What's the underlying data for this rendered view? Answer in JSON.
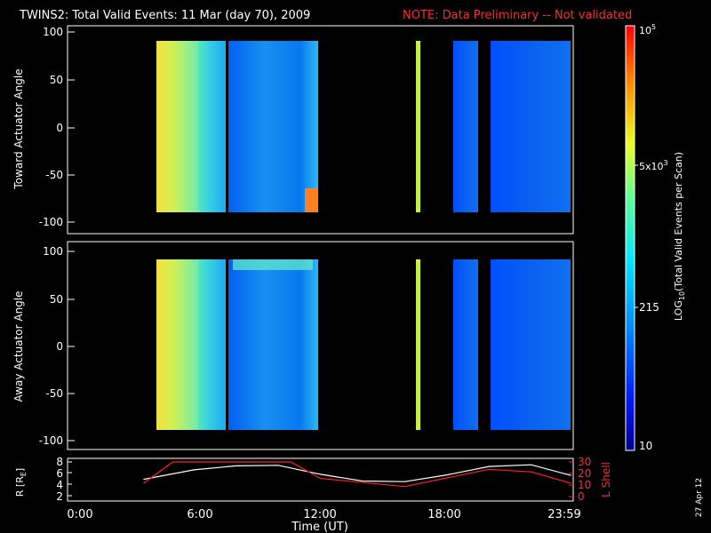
{
  "header": {
    "title": "TWINS2: Total Valid Events: 11 Mar (day  70), 2009",
    "note": "NOTE: Data Preliminary -- Not validated"
  },
  "colors": {
    "note": "#ff2020",
    "r_trace": "#ffffff",
    "lshell_trace": "#ff2020",
    "axes": "#ffffff",
    "background": "#000000"
  },
  "panels": {
    "top": {
      "ylabel": "Toward Actuator Angle",
      "yticks": [
        "100",
        "50",
        "0",
        "-50",
        "-100"
      ]
    },
    "bottom": {
      "ylabel": "Away Actuator Angle",
      "yticks": [
        "100",
        "50",
        "0",
        "-50",
        "-100"
      ]
    },
    "orbit": {
      "left_label": "R [R",
      "left_label_sub": "E",
      "left_label_close": "]",
      "left_ticks": [
        "8",
        "6",
        "4",
        "2"
      ],
      "right_label": "L Shell",
      "right_ticks": [
        "30",
        "20",
        "10",
        "0"
      ]
    }
  },
  "xaxis": {
    "label": "Time (UT)",
    "ticks": [
      "0:00",
      "6:00",
      "12:00",
      "18:00",
      "23:59"
    ]
  },
  "colorbar": {
    "label": "LOG",
    "label_sub": "10",
    "label_rest": "(Total Valid Events per Scan)",
    "tick_top_base": "10",
    "tick_top_exp": "5",
    "tick_5e3_base": "5x10",
    "tick_5e3_exp": "3",
    "tick_215": "215",
    "tick_10": "10"
  },
  "footer": {
    "date": "27 Apr 12"
  },
  "chart_data": {
    "type": "heatmap",
    "x_range_hours": [
      0,
      24
    ],
    "y_range_deg": [
      -100,
      100
    ],
    "color_scale": "log",
    "color_range": [
      10,
      100000
    ],
    "data_coverage_hours": [
      {
        "start": 3.6,
        "end": 11.9,
        "level": "mixed"
      },
      {
        "start": 16.4,
        "end": 16.6,
        "level": "high"
      },
      {
        "start": 18.1,
        "end": 19.2,
        "level": "low"
      },
      {
        "start": 20.0,
        "end": 23.9,
        "level": "low"
      }
    ],
    "orbit": {
      "R_RE": {
        "x": [
          3.6,
          6,
          8,
          10,
          12,
          14,
          16,
          18,
          20,
          22,
          23.9
        ],
        "y": [
          4.9,
          6.6,
          7.3,
          7.4,
          5.8,
          4.6,
          4.5,
          5.7,
          7.2,
          7.5,
          5.6
        ]
      },
      "L_shell": {
        "x": [
          3.6,
          5.0,
          10.6,
          12.0,
          16.0,
          20.0,
          22.0,
          23.9
        ],
        "y": [
          11.4,
          30,
          30,
          15.7,
          8.7,
          23.6,
          21.4,
          11.4
        ]
      }
    }
  }
}
